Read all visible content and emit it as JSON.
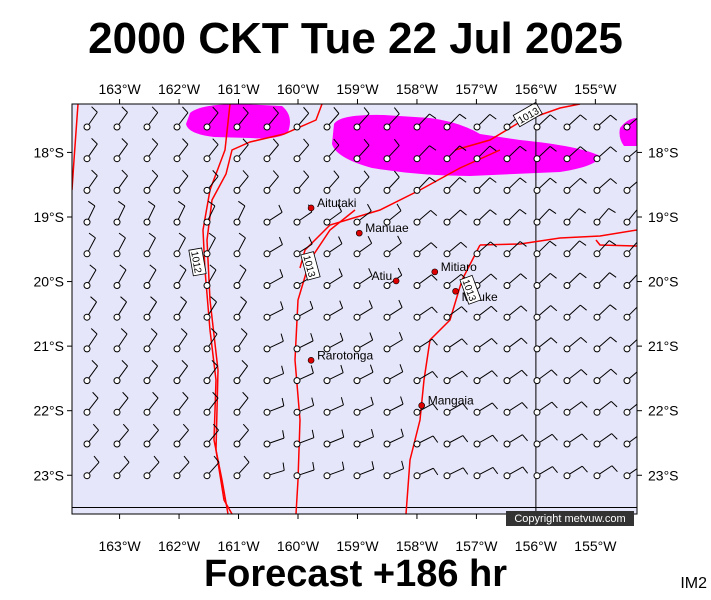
{
  "header": {
    "title": "2000 CKT Tue 22 Jul 2025"
  },
  "footer": {
    "forecast_label": "Forecast +186 hr",
    "corner_label": "IM2"
  },
  "map": {
    "lon_range": [
      -163.8,
      -154.3
    ],
    "lat_range": [
      -23.6,
      -17.25
    ],
    "longitude_ticks": [
      "163°W",
      "162°W",
      "161°W",
      "160°W",
      "159°W",
      "158°W",
      "157°W",
      "156°W",
      "155°W"
    ],
    "latitude_ticks": [
      "18°S",
      "19°S",
      "20°S",
      "21°S",
      "22°S",
      "23°S"
    ],
    "background_color": "#e6e6fa",
    "isobar_color": "#ff0000",
    "precip_color": "#ff00ff",
    "isobar_labels": [
      "1012",
      "1013",
      "1013",
      "1013"
    ],
    "places": [
      {
        "name": "Aitutaki",
        "lon": -159.78,
        "lat": -18.86
      },
      {
        "name": "Manuae",
        "lon": -158.97,
        "lat": -19.25
      },
      {
        "name": "Atiu",
        "lon": -158.35,
        "lat": -19.99
      },
      {
        "name": "Mitiaro",
        "lon": -157.7,
        "lat": -19.85
      },
      {
        "name": "Mauke",
        "lon": -157.35,
        "lat": -20.15
      },
      {
        "name": "Rarotonga",
        "lon": -159.78,
        "lat": -21.22
      },
      {
        "name": "Mangaia",
        "lon": -157.92,
        "lat": -21.92
      }
    ],
    "copyright": "Copyright metvuw.com"
  }
}
